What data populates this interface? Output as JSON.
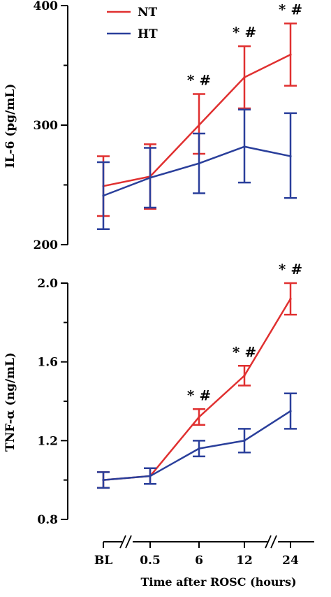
{
  "chart_data": [
    {
      "type": "line",
      "ylabel": "IL-6 (pg/mL)",
      "ylim": [
        200,
        400
      ],
      "yticks_major": [
        200,
        300,
        400
      ],
      "yticks_minor": [
        250,
        350
      ],
      "categories": [
        "BL",
        "0.5",
        "6",
        "12",
        "24"
      ],
      "series": [
        {
          "name": "NT",
          "color": "#e03030",
          "values": [
            249,
            257,
            300,
            340,
            359
          ],
          "err_low": [
            224,
            230,
            276,
            314,
            333
          ],
          "err_high": [
            274,
            284,
            326,
            366,
            385
          ]
        },
        {
          "name": "HT",
          "color": "#2a3f9b",
          "values": [
            241,
            256,
            268,
            282,
            274
          ],
          "err_low": [
            213,
            231,
            243,
            252,
            239
          ],
          "err_high": [
            269,
            281,
            293,
            313,
            310
          ]
        }
      ],
      "significance": [
        {
          "category": "6",
          "label": "* #"
        },
        {
          "category": "12",
          "label": "* #"
        },
        {
          "category": "24",
          "label": "* #"
        }
      ],
      "legend": {
        "position": "top-left",
        "entries": [
          "NT",
          "HT"
        ]
      }
    },
    {
      "type": "line",
      "ylabel": "TNF-α (ng/mL)",
      "ylim": [
        0.8,
        2.0
      ],
      "yticks_major": [
        0.8,
        1.2,
        1.6,
        2.0
      ],
      "yticks_major_labels": [
        "0.8",
        "1.2",
        "1.6",
        "2.0"
      ],
      "yticks_minor": [
        1.0,
        1.4,
        1.8
      ],
      "categories": [
        "BL",
        "0.5",
        "6",
        "12",
        "24"
      ],
      "series": [
        {
          "name": "NT",
          "color": "#e03030",
          "values": [
            1.0,
            1.02,
            1.32,
            1.53,
            1.92
          ],
          "err_low": [
            0.96,
            0.98,
            1.28,
            1.48,
            1.84
          ],
          "err_high": [
            1.04,
            1.06,
            1.36,
            1.58,
            2.0
          ]
        },
        {
          "name": "HT",
          "color": "#2a3f9b",
          "values": [
            1.0,
            1.02,
            1.16,
            1.2,
            1.35
          ],
          "err_low": [
            0.96,
            0.98,
            1.12,
            1.14,
            1.26
          ],
          "err_high": [
            1.04,
            1.06,
            1.2,
            1.26,
            1.44
          ]
        }
      ],
      "significance": [
        {
          "category": "6",
          "label": "* #"
        },
        {
          "category": "12",
          "label": "* #"
        },
        {
          "category": "24",
          "label": "* #"
        }
      ]
    }
  ],
  "x_axis": {
    "label": "Time after ROSC (hours)",
    "categories": [
      "BL",
      "0.5",
      "6",
      "12",
      "24"
    ],
    "breaks_between": [
      [
        "BL",
        "0.5"
      ],
      [
        "12",
        "24"
      ]
    ]
  }
}
